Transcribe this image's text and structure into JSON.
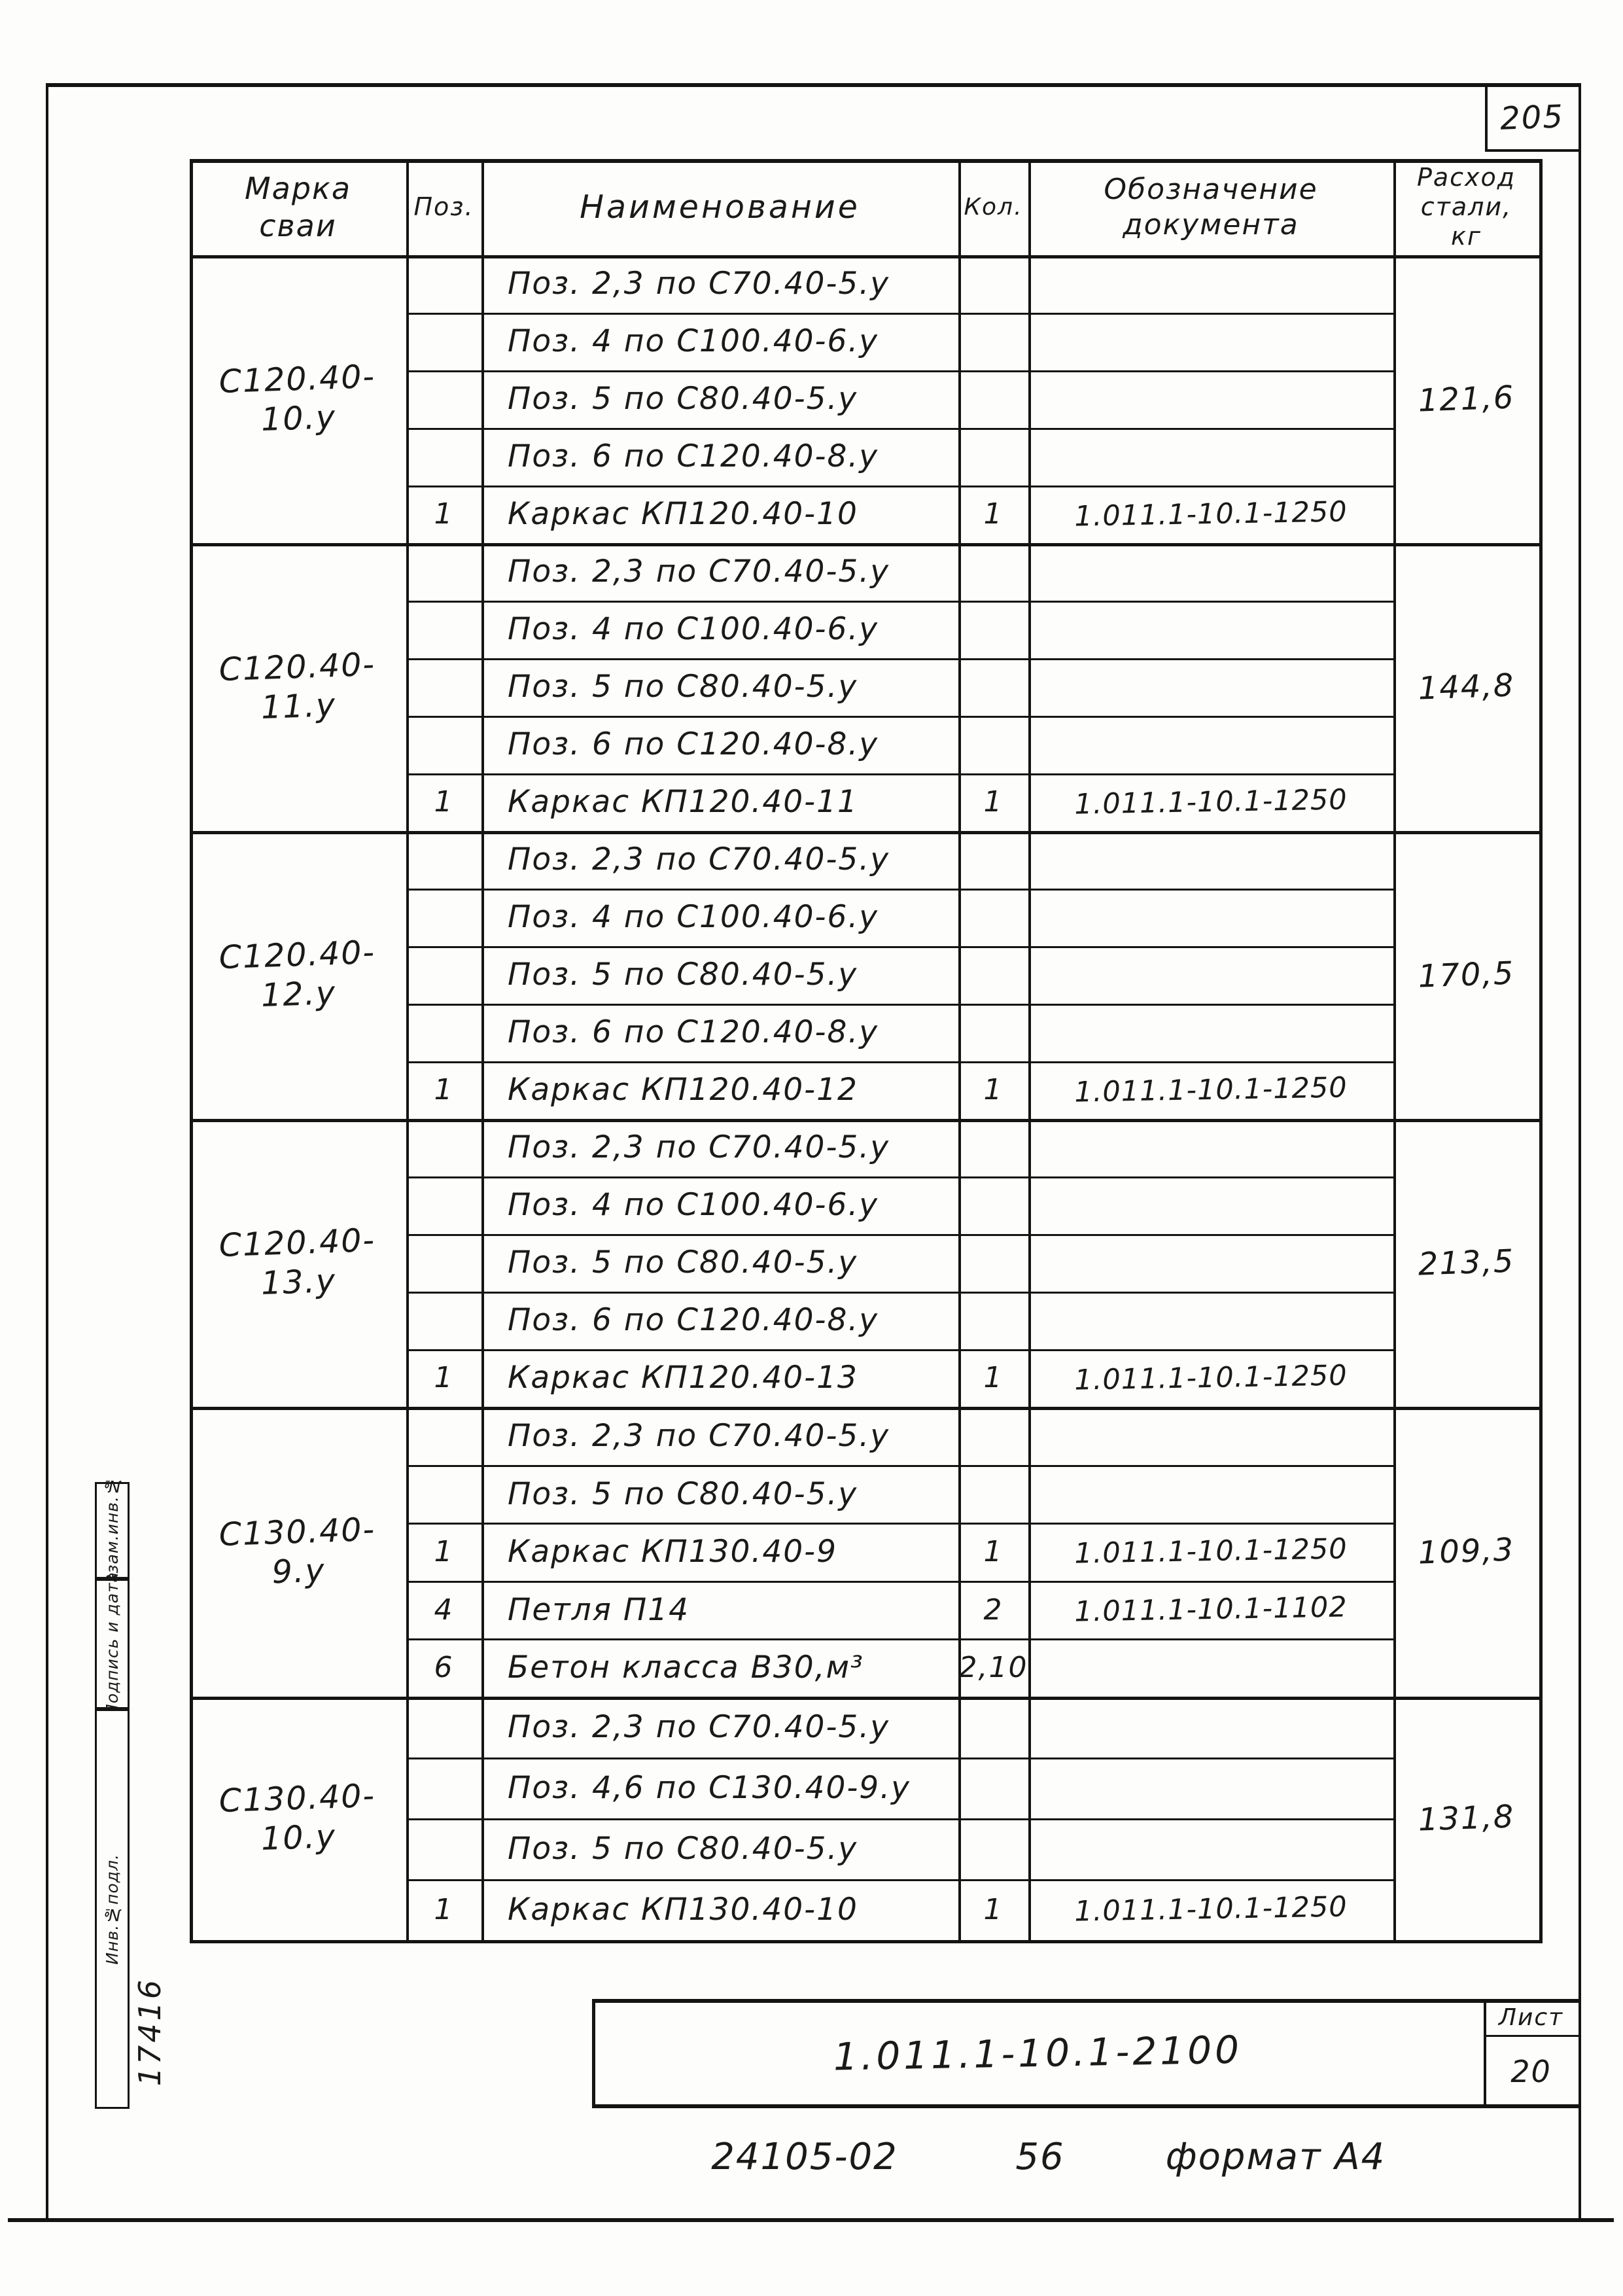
{
  "page": {
    "sheet_number_top": "205",
    "stamps": {
      "vzam": "Взам.инв.№",
      "podpis": "Подпись и дата",
      "inv": "Инв.№подл.",
      "inventory_value": "17416"
    },
    "title_block": {
      "document_number": "1.011.1-10.1-2100",
      "sheet_label": "Лист",
      "sheet_number": "20"
    },
    "footer": {
      "order_code": "24105-02",
      "sheet_code": "56",
      "format_label": "формат А4"
    }
  },
  "table": {
    "headers": {
      "mark": "Марка\nсваи",
      "poz": "Поз.",
      "name": "Наименование",
      "qty": "Кол.",
      "doc": "Обозначение\nдокумента",
      "steel": "Расход\nстали,\nкг"
    },
    "blocks": [
      {
        "mark": "С120.40-10.у",
        "steel": "121,6",
        "rows": [
          {
            "poz": "",
            "name": "Поз. 2,3 по С70.40-5.у",
            "qty": "",
            "doc": ""
          },
          {
            "poz": "",
            "name": "Поз. 4 по С100.40-6.у",
            "qty": "",
            "doc": ""
          },
          {
            "poz": "",
            "name": "Поз. 5 по С80.40-5.у",
            "qty": "",
            "doc": ""
          },
          {
            "poz": "",
            "name": "Поз. 6 по С120.40-8.у",
            "qty": "",
            "doc": ""
          },
          {
            "poz": "1",
            "name": "Каркас КП120.40-10",
            "qty": "1",
            "doc": "1.011.1-10.1-1250"
          }
        ]
      },
      {
        "mark": "С120.40-11.у",
        "steel": "144,8",
        "rows": [
          {
            "poz": "",
            "name": "Поз. 2,3 по С70.40-5.у",
            "qty": "",
            "doc": ""
          },
          {
            "poz": "",
            "name": "Поз. 4 по С100.40-6.у",
            "qty": "",
            "doc": ""
          },
          {
            "poz": "",
            "name": "Поз. 5 по С80.40-5.у",
            "qty": "",
            "doc": ""
          },
          {
            "poz": "",
            "name": "Поз. 6 по С120.40-8.у",
            "qty": "",
            "doc": ""
          },
          {
            "poz": "1",
            "name": "Каркас КП120.40-11",
            "qty": "1",
            "doc": "1.011.1-10.1-1250"
          }
        ]
      },
      {
        "mark": "С120.40-12.у",
        "steel": "170,5",
        "rows": [
          {
            "poz": "",
            "name": "Поз. 2,3 по С70.40-5.у",
            "qty": "",
            "doc": ""
          },
          {
            "poz": "",
            "name": "Поз. 4 по С100.40-6.у",
            "qty": "",
            "doc": ""
          },
          {
            "poz": "",
            "name": "Поз. 5 по С80.40-5.у",
            "qty": "",
            "doc": ""
          },
          {
            "poz": "",
            "name": "Поз. 6 по С120.40-8.у",
            "qty": "",
            "doc": ""
          },
          {
            "poz": "1",
            "name": "Каркас КП120.40-12",
            "qty": "1",
            "doc": "1.011.1-10.1-1250"
          }
        ]
      },
      {
        "mark": "С120.40-13.у",
        "steel": "213,5",
        "rows": [
          {
            "poz": "",
            "name": "Поз. 2,3 по С70.40-5.у",
            "qty": "",
            "doc": ""
          },
          {
            "poz": "",
            "name": "Поз. 4 по С100.40-6.у",
            "qty": "",
            "doc": ""
          },
          {
            "poz": "",
            "name": "Поз. 5 по С80.40-5.у",
            "qty": "",
            "doc": ""
          },
          {
            "poz": "",
            "name": "Поз. 6 по С120.40-8.у",
            "qty": "",
            "doc": ""
          },
          {
            "poz": "1",
            "name": "Каркас КП120.40-13",
            "qty": "1",
            "doc": "1.011.1-10.1-1250"
          }
        ]
      },
      {
        "mark": "С130.40-9.у",
        "steel": "109,3",
        "rows": [
          {
            "poz": "",
            "name": "Поз. 2,3 по С70.40-5.у",
            "qty": "",
            "doc": ""
          },
          {
            "poz": "",
            "name": "Поз. 5 по С80.40-5.у",
            "qty": "",
            "doc": ""
          },
          {
            "poz": "1",
            "name": "Каркас КП130.40-9",
            "qty": "1",
            "doc": "1.011.1-10.1-1250"
          },
          {
            "poz": "4",
            "name": "Петля П14",
            "qty": "2",
            "doc": "1.011.1-10.1-1102"
          },
          {
            "poz": "6",
            "name": "Бетон класса В30,м³",
            "qty": "2,10",
            "doc": ""
          }
        ]
      },
      {
        "mark": "С130.40-10.у",
        "steel": "131,8",
        "rows": [
          {
            "poz": "",
            "name": "Поз. 2,3 по С70.40-5.у",
            "qty": "",
            "doc": ""
          },
          {
            "poz": "",
            "name": "Поз. 4,6 по С130.40-9.у",
            "qty": "",
            "doc": ""
          },
          {
            "poz": "",
            "name": "Поз. 5 по С80.40-5.у",
            "qty": "",
            "doc": ""
          },
          {
            "poz": "1",
            "name": "Каркас КП130.40-10",
            "qty": "1",
            "doc": "1.011.1-10.1-1250"
          }
        ]
      }
    ]
  }
}
